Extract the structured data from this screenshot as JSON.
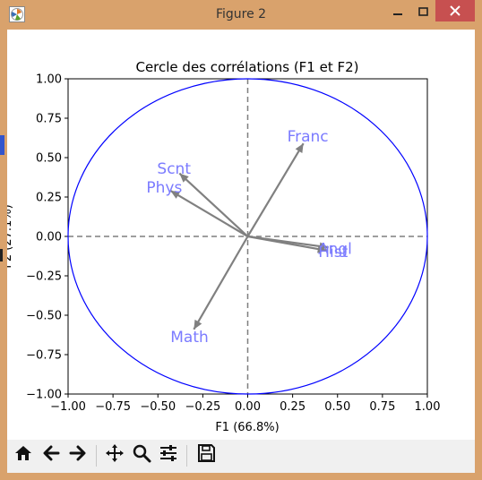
{
  "window": {
    "title": "Figure 2",
    "app_icon": "matplotlib-logo-icon",
    "controls": [
      "minimize-icon",
      "maximize-icon",
      "close-icon"
    ]
  },
  "toolbar": {
    "buttons": [
      {
        "name": "home-button",
        "icon": "home-icon"
      },
      {
        "name": "back-button",
        "icon": "arrow-left-icon"
      },
      {
        "name": "forward-button",
        "icon": "arrow-right-icon"
      },
      {
        "name": "pan-button",
        "icon": "move-arrows-icon"
      },
      {
        "name": "zoom-button",
        "icon": "magnifier-icon"
      },
      {
        "name": "configure-subplots-button",
        "icon": "sliders-icon"
      },
      {
        "name": "save-button",
        "icon": "floppy-disk-icon"
      }
    ]
  },
  "chart_data": {
    "type": "scatter",
    "title": "Cercle des corrélations (F1 et F2)",
    "xlabel": "F1 (66.8%)",
    "ylabel": "F2 (27.1%)",
    "xlim": [
      -1.0,
      1.0
    ],
    "ylim": [
      -1.0,
      1.0
    ],
    "x_ticks": [
      "−1.00",
      "−0.75",
      "−0.50",
      "−0.25",
      "0.00",
      "0.25",
      "0.50",
      "0.75",
      "1.00"
    ],
    "y_ticks": [
      "−1.00",
      "−0.75",
      "−0.50",
      "−0.25",
      "0.00",
      "0.25",
      "0.50",
      "0.75",
      "1.00"
    ],
    "unit_circle": true,
    "reference_lines": [
      {
        "axis": "x",
        "value": 0
      },
      {
        "axis": "y",
        "value": 0
      }
    ],
    "vectors": [
      {
        "label": "Franc",
        "x": 0.31,
        "y": 0.59
      },
      {
        "label": "Scnt",
        "x": -0.38,
        "y": 0.4
      },
      {
        "label": "Phys",
        "x": -0.43,
        "y": 0.29
      },
      {
        "label": "Angl",
        "x": 0.45,
        "y": -0.07
      },
      {
        "label": "Hist",
        "x": 0.44,
        "y": -0.09
      },
      {
        "label": "Math",
        "x": -0.3,
        "y": -0.59
      }
    ],
    "colors": {
      "circle": "#0000ff",
      "arrow": "#808080",
      "label": "#7b7bff",
      "reference": "#7f7f7f"
    }
  }
}
